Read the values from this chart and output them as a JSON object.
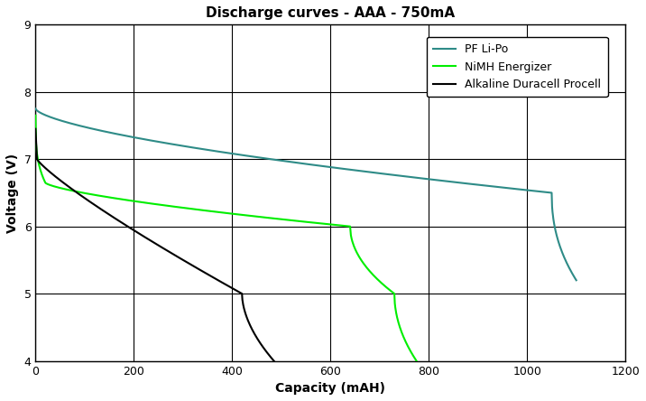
{
  "title": "Discharge curves - AAA - 750mA",
  "xlabel": "Capacity (mAH)",
  "ylabel": "Voltage (V)",
  "xlim": [
    0,
    1200
  ],
  "ylim": [
    4,
    9
  ],
  "yticks": [
    4,
    5,
    6,
    7,
    8,
    9
  ],
  "xticks": [
    0,
    200,
    400,
    600,
    800,
    1000,
    1200
  ],
  "colors": {
    "lipo": "#2e8b87",
    "nimh": "#00ee00",
    "alkaline": "#000000"
  },
  "legend_labels": [
    "PF Li-Po",
    "NiMH Energizer",
    "Alkaline Duracell Procell"
  ],
  "background_color": "#ffffff",
  "grid_color": "#000000",
  "figsize": [
    7.16,
    4.44
  ],
  "dpi": 100
}
